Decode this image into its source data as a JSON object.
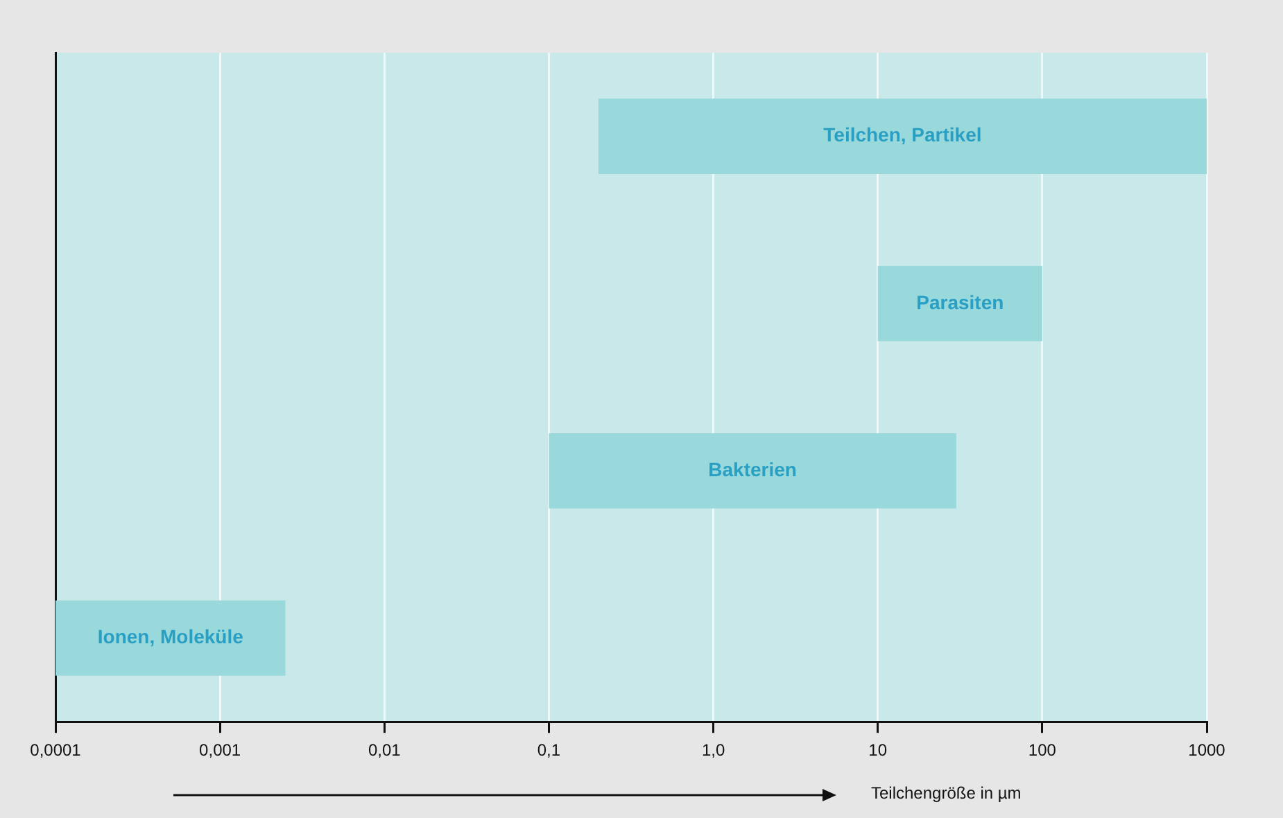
{
  "chart_data": {
    "type": "bar",
    "orientation": "horizontal",
    "xlabel": "Teilchengröße in µm",
    "categories": [
      "Teilchen, Partikel",
      "Parasiten",
      "Bakterien",
      "Ionen, Moleküle"
    ],
    "base": [
      0.2,
      10,
      0.1,
      0.0001
    ],
    "values": [
      999.8,
      90,
      29.9,
      0.0024
    ],
    "color": "#9ad9db",
    "log": "x",
    "xlim": [
      0.0001,
      1000
    ],
    "xticks": [
      {
        "value": 0.0001,
        "label": "0,0001"
      },
      {
        "value": 0.001,
        "label": "0,001"
      },
      {
        "value": 0.01,
        "label": "0,01"
      },
      {
        "value": 0.1,
        "label": "0,1"
      },
      {
        "value": 1,
        "label": "1,0"
      },
      10,
      100,
      1000
    ],
    "grid": "x",
    "tick_labels": "x"
  }
}
